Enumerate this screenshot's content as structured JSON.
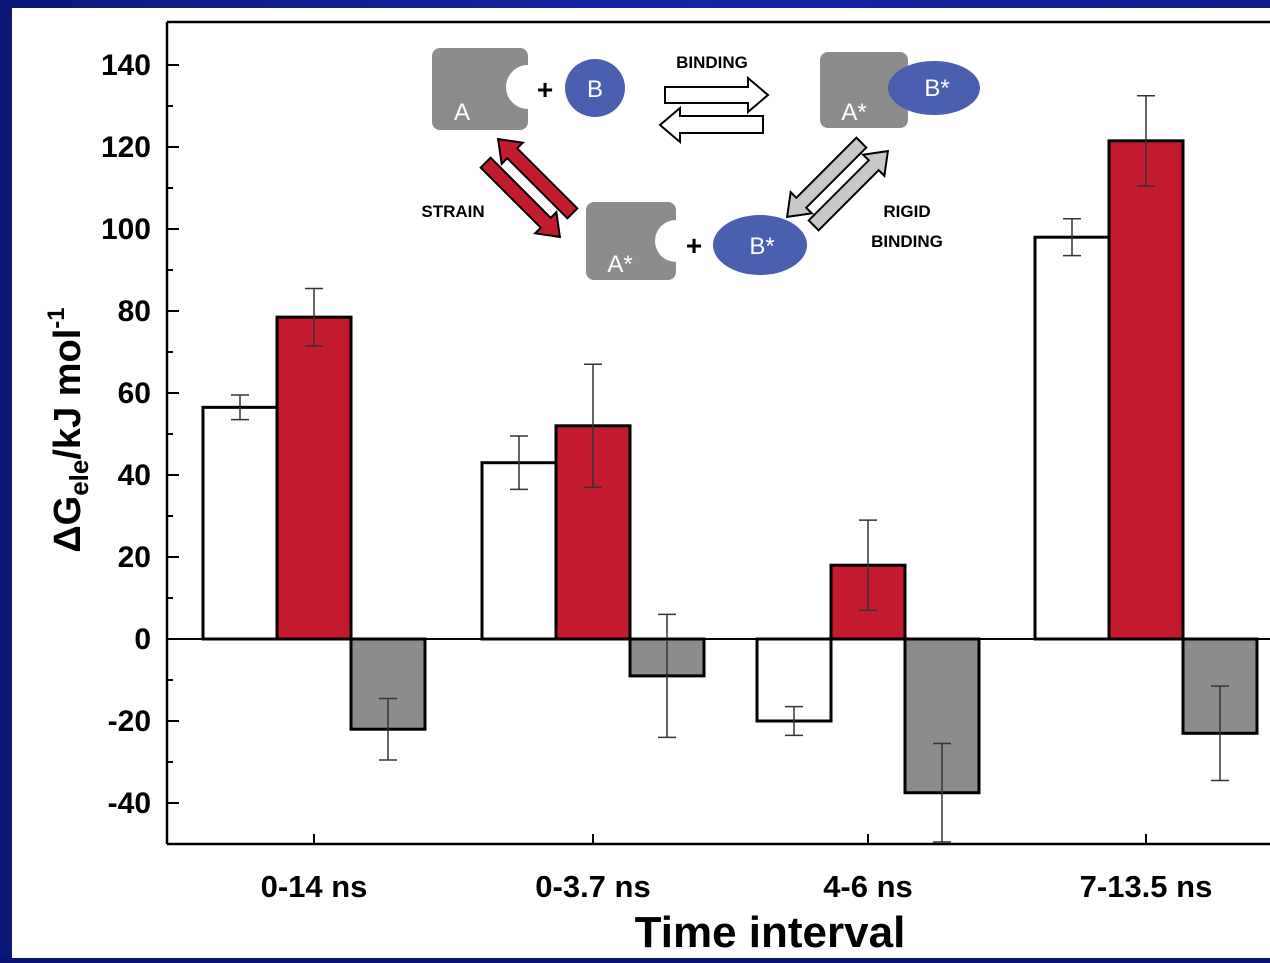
{
  "chart_data": {
    "type": "bar",
    "xlabel": "Time interval",
    "ylabel": "ΔGele/kJ mol-1",
    "ylabel_parts": {
      "delta": "ΔG",
      "sub": "ele",
      "unit": "/kJ mol",
      "sup": "-1"
    },
    "ylim": [
      -50,
      145
    ],
    "yticks": [
      140,
      120,
      100,
      80,
      60,
      40,
      20,
      0,
      -20,
      -40
    ],
    "grid": false,
    "categories": [
      "0-14 ns",
      "0-3.7 ns",
      "4-6 ns",
      "7-13.5 ns"
    ],
    "series": [
      {
        "fill": "#ffffff",
        "values": [
          56.5,
          43,
          -20,
          98
        ],
        "errors": [
          3,
          6.5,
          3.5,
          4.5
        ]
      },
      {
        "fill": "#c41a2e",
        "values": [
          78.5,
          52,
          18,
          121.5
        ],
        "errors": [
          7,
          15,
          11,
          11
        ]
      },
      {
        "fill": "#8c8c8c",
        "values": [
          -22,
          -9,
          -37.5,
          -23
        ],
        "errors": [
          7.5,
          15,
          12,
          11.5
        ]
      }
    ]
  },
  "inset": {
    "labels": {
      "a": "A",
      "b": "B",
      "a_star": "A*",
      "b_star": "B*",
      "plus": "+",
      "binding": "BINDING",
      "strain": "STRAIN",
      "rigid_1": "RIGID",
      "rigid_2": "BINDING"
    },
    "colors": {
      "protein": "#8c8c8c",
      "ligand": "#4a5fb0",
      "strain_arrow": "#c41a2e",
      "rigid_arrow": "#c8c8c8"
    }
  }
}
